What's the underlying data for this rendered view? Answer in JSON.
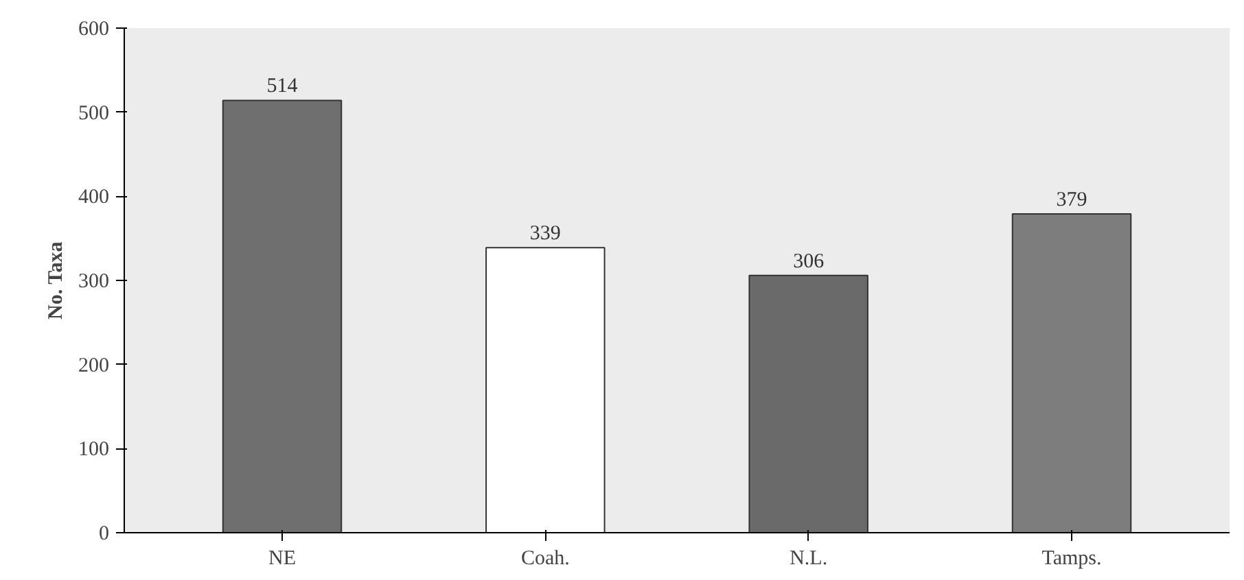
{
  "chart_data": {
    "type": "bar",
    "ylabel": "No. Taxa",
    "categories": [
      "NE",
      "Coah.",
      "N.L.",
      "Tamps."
    ],
    "values": [
      514,
      339,
      306,
      379
    ],
    "colors": [
      "#6f6f6f",
      "#ffffff",
      "#6a6a6a",
      "#7d7d7d"
    ],
    "ylim": [
      0,
      600
    ],
    "yticks": [
      0,
      100,
      200,
      300,
      400,
      500,
      600
    ],
    "data_labels": true,
    "grid": false
  }
}
